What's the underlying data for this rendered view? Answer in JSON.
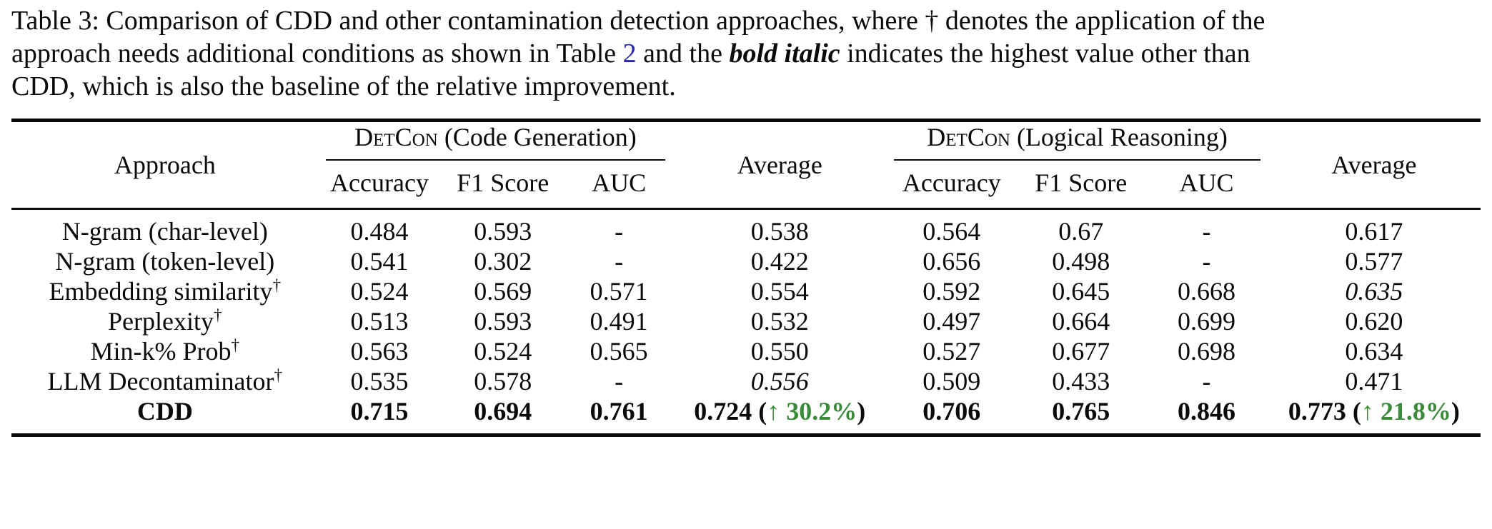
{
  "colors": {
    "improvement_green": "#3a8a3a",
    "link_blue": "#2626ae",
    "text": "#0a0a0a"
  },
  "caption": {
    "line1": "Table 3: Comparison of CDD and other contamination detection approaches, where † denotes the application of the",
    "line2_a": "approach needs additional conditions as shown in Table ",
    "line2_link": "2",
    "line2_b": " and the ",
    "line2_emph": "bold italic",
    "line2_c": " indicates the highest value other than",
    "line3": "CDD, which is also the baseline of the relative improvement."
  },
  "table": {
    "col_approach": "Approach",
    "group_code": {
      "name": "DetCon",
      "qualifier": " (Code Generation)"
    },
    "group_logic": {
      "name": "DetCon",
      "qualifier": " (Logical Reasoning)"
    },
    "metric_headers": [
      "Accuracy",
      "F1 Score",
      "AUC"
    ],
    "average_label": "Average",
    "dagger_symbol": "†",
    "rows": [
      {
        "approach": "N-gram (char-level)",
        "dagger": false,
        "bold": false,
        "cells": [
          {
            "t": "0.484"
          },
          {
            "t": "0.593"
          },
          {
            "t": "-"
          },
          {
            "t": "0.538"
          },
          {
            "t": "0.564"
          },
          {
            "t": "0.67"
          },
          {
            "t": "-"
          },
          {
            "t": "0.617"
          }
        ]
      },
      {
        "approach": "N-gram (token-level)",
        "dagger": false,
        "bold": false,
        "cells": [
          {
            "t": "0.541"
          },
          {
            "t": "0.302"
          },
          {
            "t": "-"
          },
          {
            "t": "0.422"
          },
          {
            "t": "0.656"
          },
          {
            "t": "0.498"
          },
          {
            "t": "-"
          },
          {
            "t": "0.577"
          }
        ]
      },
      {
        "approach": "Embedding similarity",
        "dagger": true,
        "bold": false,
        "cells": [
          {
            "t": "0.524"
          },
          {
            "t": "0.569"
          },
          {
            "t": "0.571"
          },
          {
            "t": "0.554"
          },
          {
            "t": "0.592"
          },
          {
            "t": "0.645"
          },
          {
            "t": "0.668"
          },
          {
            "t": "0.635",
            "hl": true
          }
        ]
      },
      {
        "approach": "Perplexity",
        "dagger": true,
        "bold": false,
        "cells": [
          {
            "t": "0.513"
          },
          {
            "t": "0.593"
          },
          {
            "t": "0.491"
          },
          {
            "t": "0.532"
          },
          {
            "t": "0.497"
          },
          {
            "t": "0.664"
          },
          {
            "t": "0.699"
          },
          {
            "t": "0.620"
          }
        ]
      },
      {
        "approach": "Min-k% Prob",
        "dagger": true,
        "bold": false,
        "cells": [
          {
            "t": "0.563"
          },
          {
            "t": "0.524"
          },
          {
            "t": "0.565"
          },
          {
            "t": "0.550"
          },
          {
            "t": "0.527"
          },
          {
            "t": "0.677"
          },
          {
            "t": "0.698"
          },
          {
            "t": "0.634"
          }
        ]
      },
      {
        "approach": "LLM Decontaminator",
        "dagger": true,
        "bold": false,
        "cells": [
          {
            "t": "0.535"
          },
          {
            "t": "0.578"
          },
          {
            "t": "-"
          },
          {
            "t": "0.556",
            "hl": true
          },
          {
            "t": "0.509"
          },
          {
            "t": "0.433"
          },
          {
            "t": "-"
          },
          {
            "t": "0.471"
          }
        ]
      },
      {
        "approach": "CDD",
        "dagger": false,
        "bold": true,
        "cells": [
          {
            "t": "0.715"
          },
          {
            "t": "0.694"
          },
          {
            "t": "0.761"
          },
          {
            "t": "0.724",
            "note": "↑ 30.2%"
          },
          {
            "t": "0.706"
          },
          {
            "t": "0.765"
          },
          {
            "t": "0.846"
          },
          {
            "t": "0.773",
            "note": "↑ 21.8%"
          }
        ]
      }
    ]
  }
}
